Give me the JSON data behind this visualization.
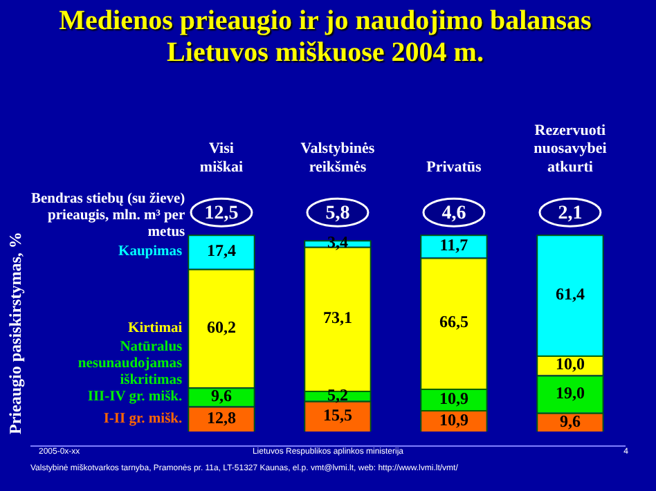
{
  "chart_data": {
    "type": "bar",
    "title": "Medienos prieaugio ir jo naudojimo balansas Lietuvos miškuose 2004 m.",
    "categories": [
      "Visi miškai",
      "Valstybinės reikšmės",
      "Privatūs",
      "Rezervuoti nuosavybei atkurti"
    ],
    "stacked": true,
    "legend": "left",
    "tick_labels": "x",
    "series": [
      {
        "name": "I-II gr. mišk.",
        "color": "#ff6600",
        "values": [
          12.8,
          15.5,
          10.9,
          9.6
        ],
        "value_labels": [
          "12,8",
          "15,5",
          "10,9",
          "9,6"
        ]
      },
      {
        "name": "III-IV gr. mišk.",
        "color": "#00ee00",
        "values": [
          9.6,
          5.2,
          10.9,
          19.0
        ],
        "value_labels": [
          "9,6",
          "5,2",
          "10,9",
          "19,0"
        ]
      },
      {
        "name": "Kirtimai",
        "color": "#ffff00",
        "values": [
          60.2,
          73.1,
          66.5,
          10.0
        ],
        "value_labels": [
          "60,2",
          "73,1",
          "66,5",
          "10,0"
        ]
      },
      {
        "name": "Kaupimas",
        "color": "#00ffff",
        "values": [
          17.4,
          3.4,
          11.7,
          61.4
        ],
        "value_labels": [
          "17,4",
          "3,4",
          "11,7",
          "61,4"
        ]
      }
    ],
    "annotations": [
      "Bendras stiebų (su žieve) prieaugis, mln. m³ per metus",
      "Natūralus nesunaudojamas iškritimas",
      "Prieaugio pasiskirstymas, %",
      "12,5",
      "5,8",
      "4,6",
      "2,1",
      "2005-0x-xx",
      "Lietuvos Respublikos aplinkos ministerija",
      "4",
      "Valstybinė miškotvarkos tarnyba, Pramonės pr. 11a, LT-51327 Kaunas, el.p. vmt@lvmi.lt, web: http://www.lvmi.lt/vmt/"
    ]
  }
}
